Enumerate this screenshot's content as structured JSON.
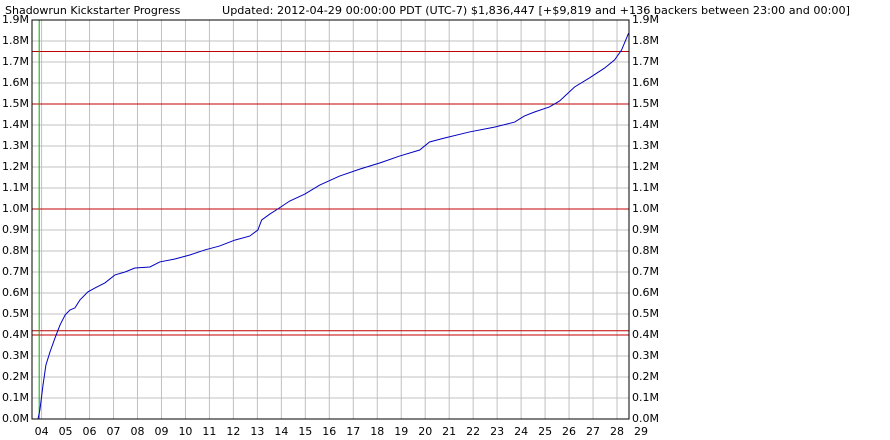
{
  "chart_data": {
    "type": "line",
    "title": "Shadowrun Kickstarter Progress",
    "subtitle": "Updated: 2012-04-29 00:00:00 PDT (UTC-7) $1,836,447 [+$9,819 and +136 backers between 23:00 and 00:00]",
    "title_color": "#e00000",
    "subtitle_color": "#0000c0",
    "color": "#0000c0",
    "grid": true,
    "grid_color": "#c0c0c0",
    "reference_lines": [
      1750000,
      1500000,
      1000000,
      420000,
      400000
    ],
    "reference_color": "#c00000",
    "start_line": 4.4,
    "start_color": "#00b000",
    "xlim": [
      4.1,
      29
    ],
    "ylim": [
      0,
      1900000
    ],
    "xticks": [
      {
        "value": 4.5,
        "label": "04"
      },
      {
        "value": 5.5,
        "label": "05"
      },
      {
        "value": 6.5,
        "label": "06"
      },
      {
        "value": 7.5,
        "label": "07"
      },
      {
        "value": 8.5,
        "label": "08"
      },
      {
        "value": 9.5,
        "label": "09"
      },
      {
        "value": 10.5,
        "label": "10"
      },
      {
        "value": 11.5,
        "label": "11"
      },
      {
        "value": 12.5,
        "label": "12"
      },
      {
        "value": 13.5,
        "label": "13"
      },
      {
        "value": 14.5,
        "label": "14"
      },
      {
        "value": 15.5,
        "label": "15"
      },
      {
        "value": 16.5,
        "label": "16"
      },
      {
        "value": 17.5,
        "label": "17"
      },
      {
        "value": 18.5,
        "label": "18"
      },
      {
        "value": 19.5,
        "label": "19"
      },
      {
        "value": 20.5,
        "label": "20"
      },
      {
        "value": 21.5,
        "label": "21"
      },
      {
        "value": 22.5,
        "label": "22"
      },
      {
        "value": 23.5,
        "label": "23"
      },
      {
        "value": 24.5,
        "label": "24"
      },
      {
        "value": 25.5,
        "label": "25"
      },
      {
        "value": 26.5,
        "label": "26"
      },
      {
        "value": 27.5,
        "label": "27"
      },
      {
        "value": 28.5,
        "label": "28"
      },
      {
        "value": 29.5,
        "label": "29"
      }
    ],
    "yticks": [
      {
        "value": 0,
        "label": "0.0M"
      },
      {
        "value": 100000,
        "label": "0.1M"
      },
      {
        "value": 200000,
        "label": "0.2M"
      },
      {
        "value": 300000,
        "label": "0.3M"
      },
      {
        "value": 400000,
        "label": "0.4M"
      },
      {
        "value": 500000,
        "label": "0.5M"
      },
      {
        "value": 600000,
        "label": "0.6M"
      },
      {
        "value": 700000,
        "label": "0.7M"
      },
      {
        "value": 800000,
        "label": "0.8M"
      },
      {
        "value": 900000,
        "label": "0.9M"
      },
      {
        "value": 1000000,
        "label": "1.0M"
      },
      {
        "value": 1100000,
        "label": "1.1M"
      },
      {
        "value": 1200000,
        "label": "1.2M"
      },
      {
        "value": 1300000,
        "label": "1.3M"
      },
      {
        "value": 1400000,
        "label": "1.4M"
      },
      {
        "value": 1500000,
        "label": "1.5M"
      },
      {
        "value": 1600000,
        "label": "1.6M"
      },
      {
        "value": 1700000,
        "label": "1.7M"
      },
      {
        "value": 1800000,
        "label": "1.8M"
      },
      {
        "value": 1900000,
        "label": "1.9M"
      }
    ],
    "x": [
      4.35,
      4.43,
      4.56,
      4.68,
      4.85,
      5.06,
      5.27,
      5.48,
      5.68,
      5.89,
      6.1,
      6.43,
      6.73,
      7.14,
      7.56,
      7.98,
      8.39,
      9.02,
      9.43,
      10.06,
      10.68,
      11.31,
      11.93,
      12.56,
      13.18,
      13.52,
      13.68,
      14.02,
      14.35,
      14.85,
      15.48,
      16.1,
      16.93,
      17.77,
      18.6,
      19.43,
      20.27,
      20.68,
      21.31,
      22.35,
      23.39,
      24.23,
      24.64,
      25.06,
      25.68,
      26.1,
      26.73,
      27.35,
      27.98,
      28.4,
      28.69,
      28.98
    ],
    "values": [
      0,
      43000,
      162000,
      257000,
      319000,
      386000,
      448000,
      495000,
      519000,
      529000,
      567000,
      605000,
      624000,
      648000,
      686000,
      700000,
      719000,
      724000,
      748000,
      762000,
      781000,
      805000,
      824000,
      852000,
      871000,
      900000,
      948000,
      976000,
      1000000,
      1038000,
      1071000,
      1114000,
      1157000,
      1190000,
      1219000,
      1252000,
      1281000,
      1319000,
      1338000,
      1367000,
      1390000,
      1414000,
      1443000,
      1462000,
      1486000,
      1514000,
      1581000,
      1624000,
      1671000,
      1710000,
      1757000,
      1836447
    ]
  }
}
